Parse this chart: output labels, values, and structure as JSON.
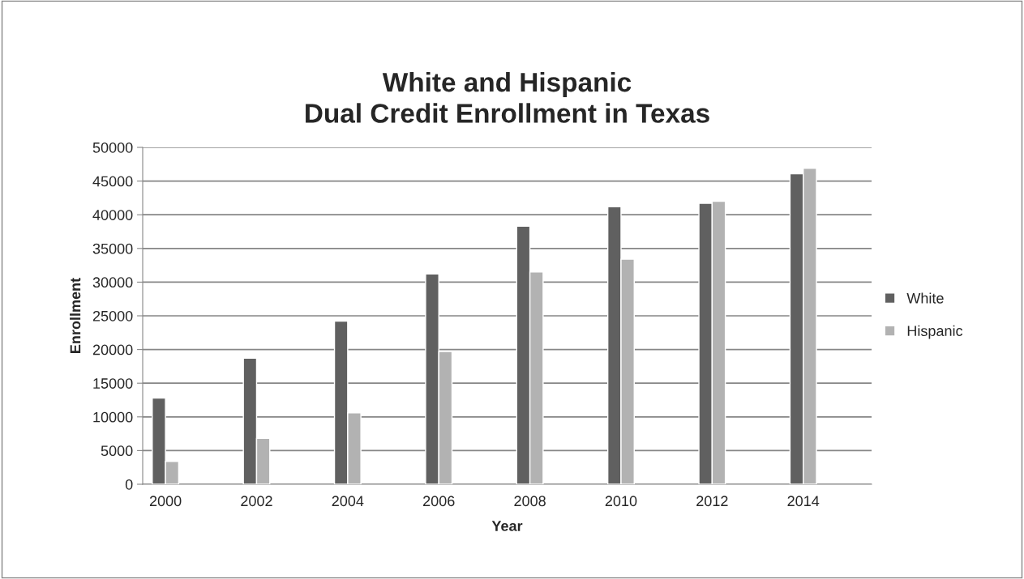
{
  "chart_data": {
    "type": "bar",
    "title": "White and Hispanic\nDual Credit Enrollment in Texas",
    "xlabel": "Year",
    "ylabel": "Enrollment",
    "categories": [
      "2000",
      null,
      "2002",
      null,
      "2004",
      null,
      "2006",
      null,
      "2008",
      null,
      "2010",
      null,
      "2012",
      null,
      "2014",
      null
    ],
    "series": [
      {
        "name": "White",
        "color": "#606060",
        "values": [
          12800,
          null,
          18700,
          null,
          24200,
          null,
          31200,
          null,
          38300,
          null,
          41200,
          null,
          41700,
          null,
          46100,
          null
        ]
      },
      {
        "name": "Hispanic",
        "color": "#b2b2b2",
        "values": [
          3400,
          null,
          6800,
          null,
          10600,
          null,
          19700,
          null,
          31500,
          null,
          33400,
          null,
          42000,
          null,
          46900,
          null
        ]
      }
    ],
    "ylim": [
      0,
      50000
    ],
    "yticks": [
      0,
      5000,
      10000,
      15000,
      20000,
      25000,
      30000,
      35000,
      40000,
      45000,
      50000
    ],
    "grid": "y",
    "legend": "right"
  }
}
